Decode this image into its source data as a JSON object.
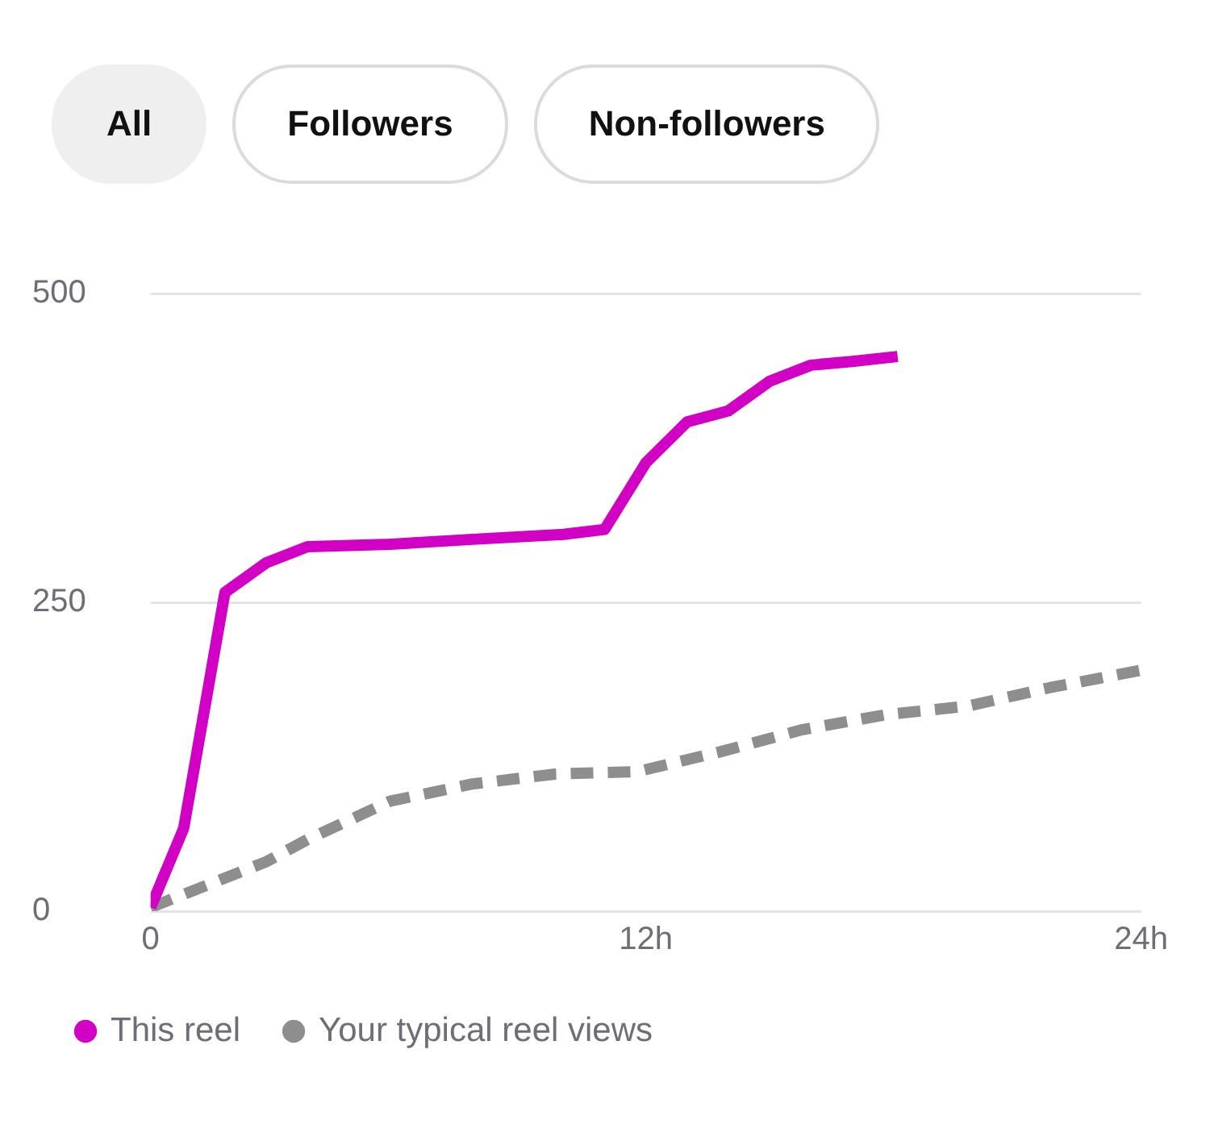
{
  "chart_data": {
    "type": "line",
    "annotations": [
      "All",
      "Followers",
      "Non-followers"
    ],
    "xlim": [
      0,
      24
    ],
    "xticks": [
      {
        "value": 0,
        "label": "0"
      },
      {
        "value": 12,
        "label": "12h"
      },
      {
        "value": 24,
        "label": "24h"
      }
    ],
    "ylim": [
      0,
      500
    ],
    "yticks": [
      0,
      250,
      500
    ],
    "grid": "y",
    "legend": "bottom",
    "marker": "none",
    "series": [
      {
        "name": "This reel",
        "color": "#d100c4",
        "x": [
          0,
          0.8,
          1.8,
          2.8,
          3.8,
          5.8,
          7.8,
          10,
          11,
          12,
          13,
          14,
          15,
          16,
          17,
          18.1
        ],
        "values": [
          3,
          67,
          258,
          282,
          295,
          297,
          301,
          305,
          309,
          363,
          396,
          405,
          429,
          442,
          445,
          449
        ]
      },
      {
        "name": "Your typical reel views",
        "color": "#8e8e8e",
        "line_style": "dashed",
        "x": [
          0,
          2.8,
          3.8,
          5.8,
          7.8,
          9.8,
          11.8,
          13.8,
          15.8,
          17.8,
          19.8,
          21.8,
          24
        ],
        "values": [
          3,
          40,
          58,
          89,
          103,
          111,
          113,
          129,
          147,
          159,
          166,
          181,
          195
        ]
      }
    ]
  }
}
